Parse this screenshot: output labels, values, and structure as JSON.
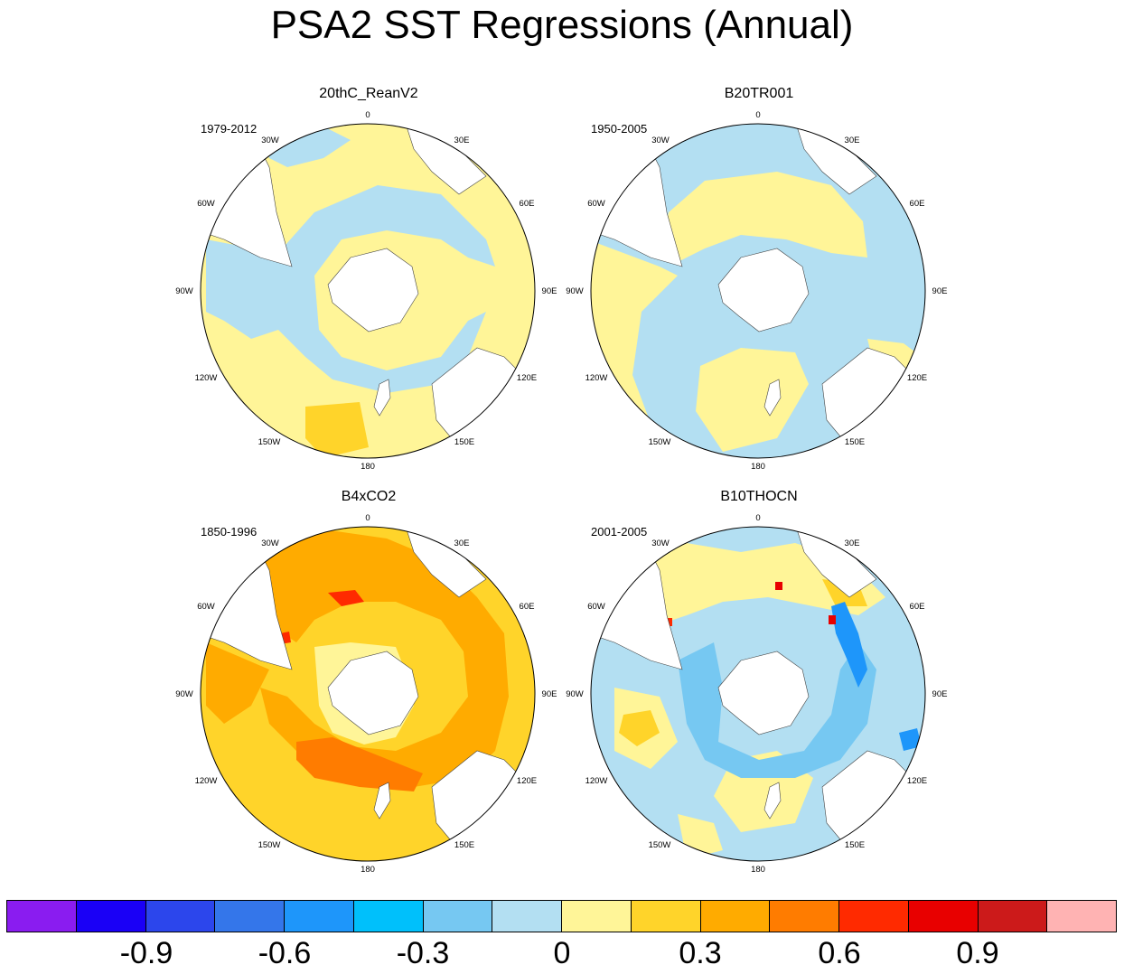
{
  "title": "PSA2 SST Regressions (Annual)",
  "longitude_labels": [
    "0",
    "30E",
    "60E",
    "90E",
    "120E",
    "150E",
    "180",
    "150W",
    "120W",
    "90W",
    "60W",
    "30W"
  ],
  "panels": [
    {
      "title": "20thC_ReanV2",
      "years": "1979-2012"
    },
    {
      "title": "B20TR001",
      "years": "1950-2005"
    },
    {
      "title": "B4xCO2",
      "years": "1850-1996"
    },
    {
      "title": "B10THOCN",
      "years": "2001-2005"
    }
  ],
  "colorbar": {
    "colors": [
      "#8a1cf0",
      "#1a00f6",
      "#2c46ec",
      "#3476ea",
      "#1e96fa",
      "#00c0fb",
      "#76c8f2",
      "#b3dff2",
      "#fff598",
      "#ffd42a",
      "#ffab00",
      "#ff7c00",
      "#ff2a00",
      "#e80000",
      "#cc1a1a",
      "#ffb3b3"
    ],
    "labels": [
      "-0.9",
      "-0.6",
      "-0.3",
      "0",
      "0.3",
      "0.6",
      "0.9"
    ]
  }
}
